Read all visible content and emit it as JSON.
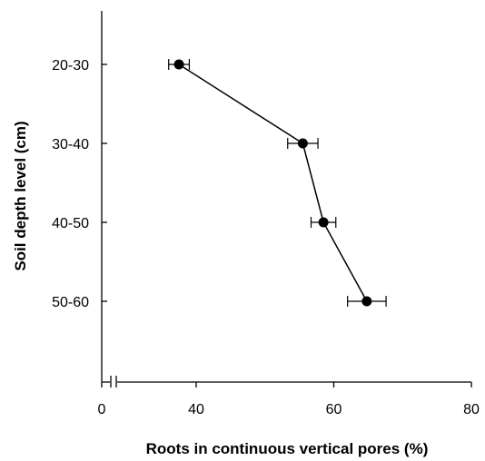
{
  "chart_data": {
    "type": "line",
    "orientation": "horizontal",
    "xlabel": "Roots in continuous vertical pores (%)",
    "ylabel": "Soil depth level (cm)",
    "x_ticks": [
      "0",
      "40",
      "60",
      "80"
    ],
    "x_tick_values": [
      0,
      40,
      60,
      80
    ],
    "x_axis_break": "between 0 and 40",
    "categories": [
      "20-30",
      "30-40",
      "40-50",
      "50-60"
    ],
    "series": [
      {
        "values": [
          37.5,
          55.5,
          58.5,
          64.8
        ],
        "error": [
          1.5,
          2.2,
          1.8,
          2.8
        ]
      }
    ],
    "marker": "filled-circle",
    "line_color": "#000000",
    "grid": false,
    "legend": "none"
  }
}
